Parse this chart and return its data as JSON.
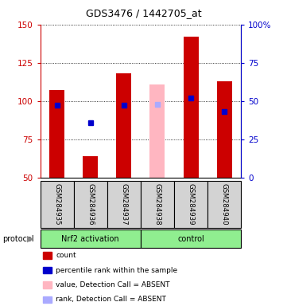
{
  "title": "GDS3476 / 1442705_at",
  "samples": [
    "GSM284935",
    "GSM284936",
    "GSM284937",
    "GSM284938",
    "GSM284939",
    "GSM284940"
  ],
  "group_labels": [
    "Nrf2 activation",
    "control"
  ],
  "ylim_left": [
    50,
    150
  ],
  "ylim_right": [
    0,
    100
  ],
  "yticks_left": [
    50,
    75,
    100,
    125,
    150
  ],
  "yticks_right": [
    0,
    25,
    50,
    75,
    100
  ],
  "yticklabels_right": [
    "0",
    "25",
    "50",
    "75",
    "100%"
  ],
  "bar_bottom": 50,
  "bar_heights_red": [
    57,
    14,
    68,
    0,
    92,
    63
  ],
  "bar_heights_pink": [
    0,
    0,
    0,
    61,
    0,
    0
  ],
  "blue_square_y": [
    97,
    86,
    97,
    0,
    102,
    93
  ],
  "blue_square_present": [
    true,
    true,
    true,
    false,
    true,
    true
  ],
  "blue_light_y": [
    0,
    0,
    0,
    98,
    0,
    0
  ],
  "blue_light_present": [
    false,
    false,
    false,
    true,
    false,
    false
  ],
  "absent_mask": [
    false,
    false,
    false,
    true,
    false,
    false
  ],
  "red_color": "#CC0000",
  "pink_color": "#FFB6C1",
  "blue_color": "#0000CC",
  "light_blue_color": "#AAAAFF",
  "bar_width": 0.45,
  "legend_items": [
    {
      "color": "#CC0000",
      "label": "count"
    },
    {
      "color": "#0000CC",
      "label": "percentile rank within the sample"
    },
    {
      "color": "#FFB6C1",
      "label": "value, Detection Call = ABSENT"
    },
    {
      "color": "#AAAAFF",
      "label": "rank, Detection Call = ABSENT"
    }
  ],
  "protocol_label": "protocol",
  "left_ytick_color": "#CC0000",
  "right_ytick_color": "#0000CC",
  "sample_box_color": "#D3D3D3",
  "group_box_color": "#90EE90",
  "fig_width": 3.61,
  "fig_height": 3.84,
  "dpi": 100
}
